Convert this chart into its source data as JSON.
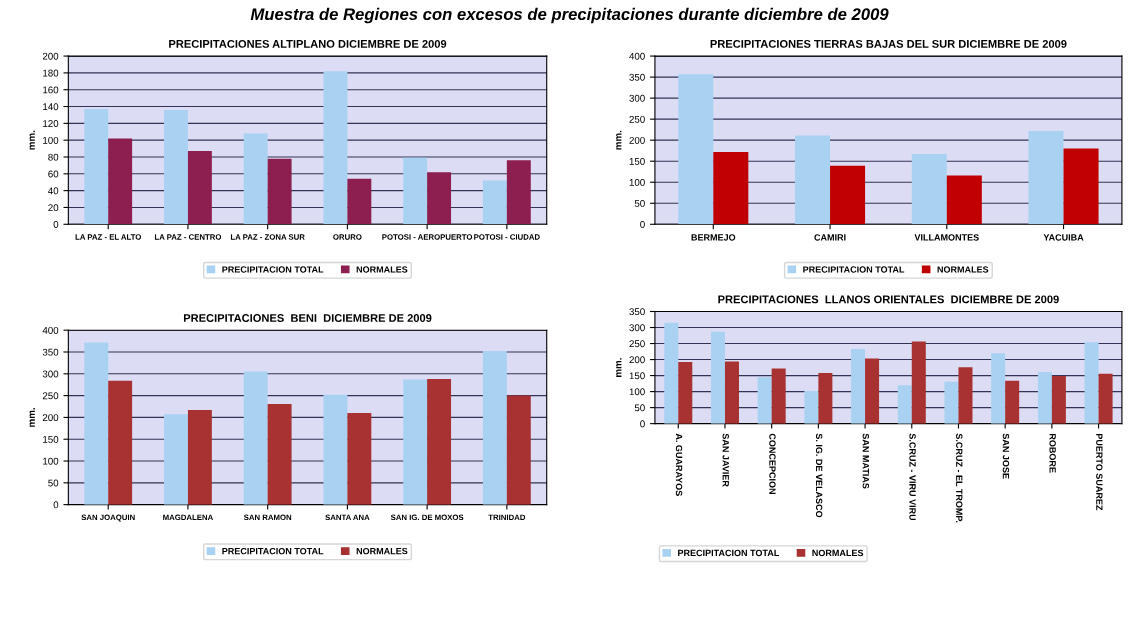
{
  "chart_data": [
    {
      "type": "bar",
      "title": "PRECIPITACIONES ALTIPLANO DICIEMBRE DE 2009",
      "ylabel": "mm.",
      "annotations": [
        "Muestra de Regiones con excesos de precipitaciones durante diciembre de 2009"
      ],
      "categories": [
        "LA PAZ - EL ALTO",
        "LA PAZ - CENTRO",
        "LA PAZ - ZONA SUR",
        "ORURO",
        "POTOSI - AEROPUERTO",
        "POTOSI - CIUDAD"
      ],
      "series": [
        {
          "name": "PRECIPITACION TOTAL",
          "color": "#a9d2f2",
          "values": [
            137,
            136,
            108,
            182,
            79,
            52
          ]
        },
        {
          "name": "NORMALES",
          "color": "#8c1f4f",
          "values": [
            102,
            87,
            78,
            54,
            62,
            76
          ]
        }
      ],
      "ylim": [
        0,
        200
      ],
      "yticks": [
        0,
        20,
        40,
        60,
        80,
        100,
        120,
        140,
        160,
        180,
        200
      ],
      "grid": "y",
      "legend": "bottom"
    },
    {
      "type": "bar",
      "title": "PRECIPITACIONES TIERRAS BAJAS DEL SUR DICIEMBRE DE 2009",
      "ylabel": "mm.",
      "categories": [
        "BERMEJO",
        "CAMIRI",
        "VILLAMONTES",
        "YACUIBA"
      ],
      "series": [
        {
          "name": "PRECIPITACION TOTAL",
          "color": "#a9d2f2",
          "values": [
            357,
            211,
            167,
            222
          ]
        },
        {
          "name": "NORMALES",
          "color": "#c00000",
          "values": [
            172,
            139,
            116,
            180
          ]
        }
      ],
      "ylim": [
        0,
        400
      ],
      "yticks": [
        0,
        50,
        100,
        150,
        200,
        250,
        300,
        350,
        400
      ],
      "grid": "y",
      "legend": "bottom"
    },
    {
      "type": "bar",
      "title": "PRECIPITACIONES  BENI  DICIEMBRE DE 2009",
      "ylabel": "mm.",
      "categories": [
        "SAN JOAQUIN",
        "MAGDALENA",
        "SAN RAMON",
        "SANTA ANA",
        "SAN IG. DE MOXOS",
        "TRINIDAD"
      ],
      "series": [
        {
          "name": "PRECIPITACION TOTAL",
          "color": "#a9d2f2",
          "values": [
            372,
            207,
            305,
            252,
            287,
            352
          ]
        },
        {
          "name": "NORMALES",
          "color": "#a83232",
          "values": [
            284,
            217,
            231,
            210,
            288,
            250
          ]
        }
      ],
      "ylim": [
        0,
        400
      ],
      "yticks": [
        0,
        50,
        100,
        150,
        200,
        250,
        300,
        350,
        400
      ],
      "grid": "y",
      "legend": "bottom"
    },
    {
      "type": "bar",
      "title": "PRECIPITACIONES  LLANOS ORIENTALES  DICIEMBRE DE 2009",
      "ylabel": "mm.",
      "categories": [
        "A. GUARAYOS",
        "SAN JAVIER",
        "CONCEPCION",
        "S. IG. DE VELASCO",
        "SAN MATIAS",
        "S.CRUZ - VIRU VIRU",
        "S.CRUZ - EL TROMP.",
        "SAN JOSE",
        "ROBORE",
        "PUERTO SUAREZ"
      ],
      "series": [
        {
          "name": "PRECIPITACION TOTAL",
          "color": "#a9d2f2",
          "values": [
            315,
            287,
            145,
            102,
            233,
            120,
            131,
            220,
            161,
            254
          ]
        },
        {
          "name": "NORMALES",
          "color": "#a83232",
          "values": [
            192,
            194,
            172,
            158,
            203,
            256,
            176,
            134,
            149,
            156
          ]
        }
      ],
      "ylim": [
        0,
        350
      ],
      "yticks": [
        0,
        50,
        100,
        150,
        200,
        250,
        300,
        350
      ],
      "grid": "y",
      "legend": "bottom left"
    }
  ]
}
